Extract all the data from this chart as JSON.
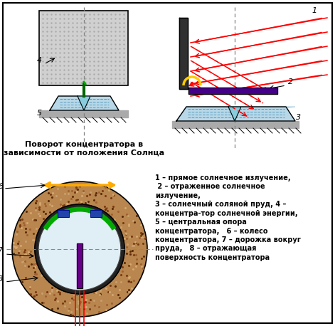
{
  "bg_color": "#ffffff",
  "title_text": "Поворот концентратора в\nзависимости от положения Солнца",
  "legend_text": "1 – прямое солнечное излучение,\n 2 – отраженное солнечное\nизлучение,\n3 – солнечный соляной пруд, 4 –\nконцентра-тор солнечной энергии,\n5 – центральная опора\nконцентратора,   6 – колесо\nконцентратора, 7 – дорожка вокруг\nпруда,   8 – отражающая\nповерхность концентратора",
  "fig_w": 4.71,
  "fig_h": 4.58,
  "dpi": 100
}
